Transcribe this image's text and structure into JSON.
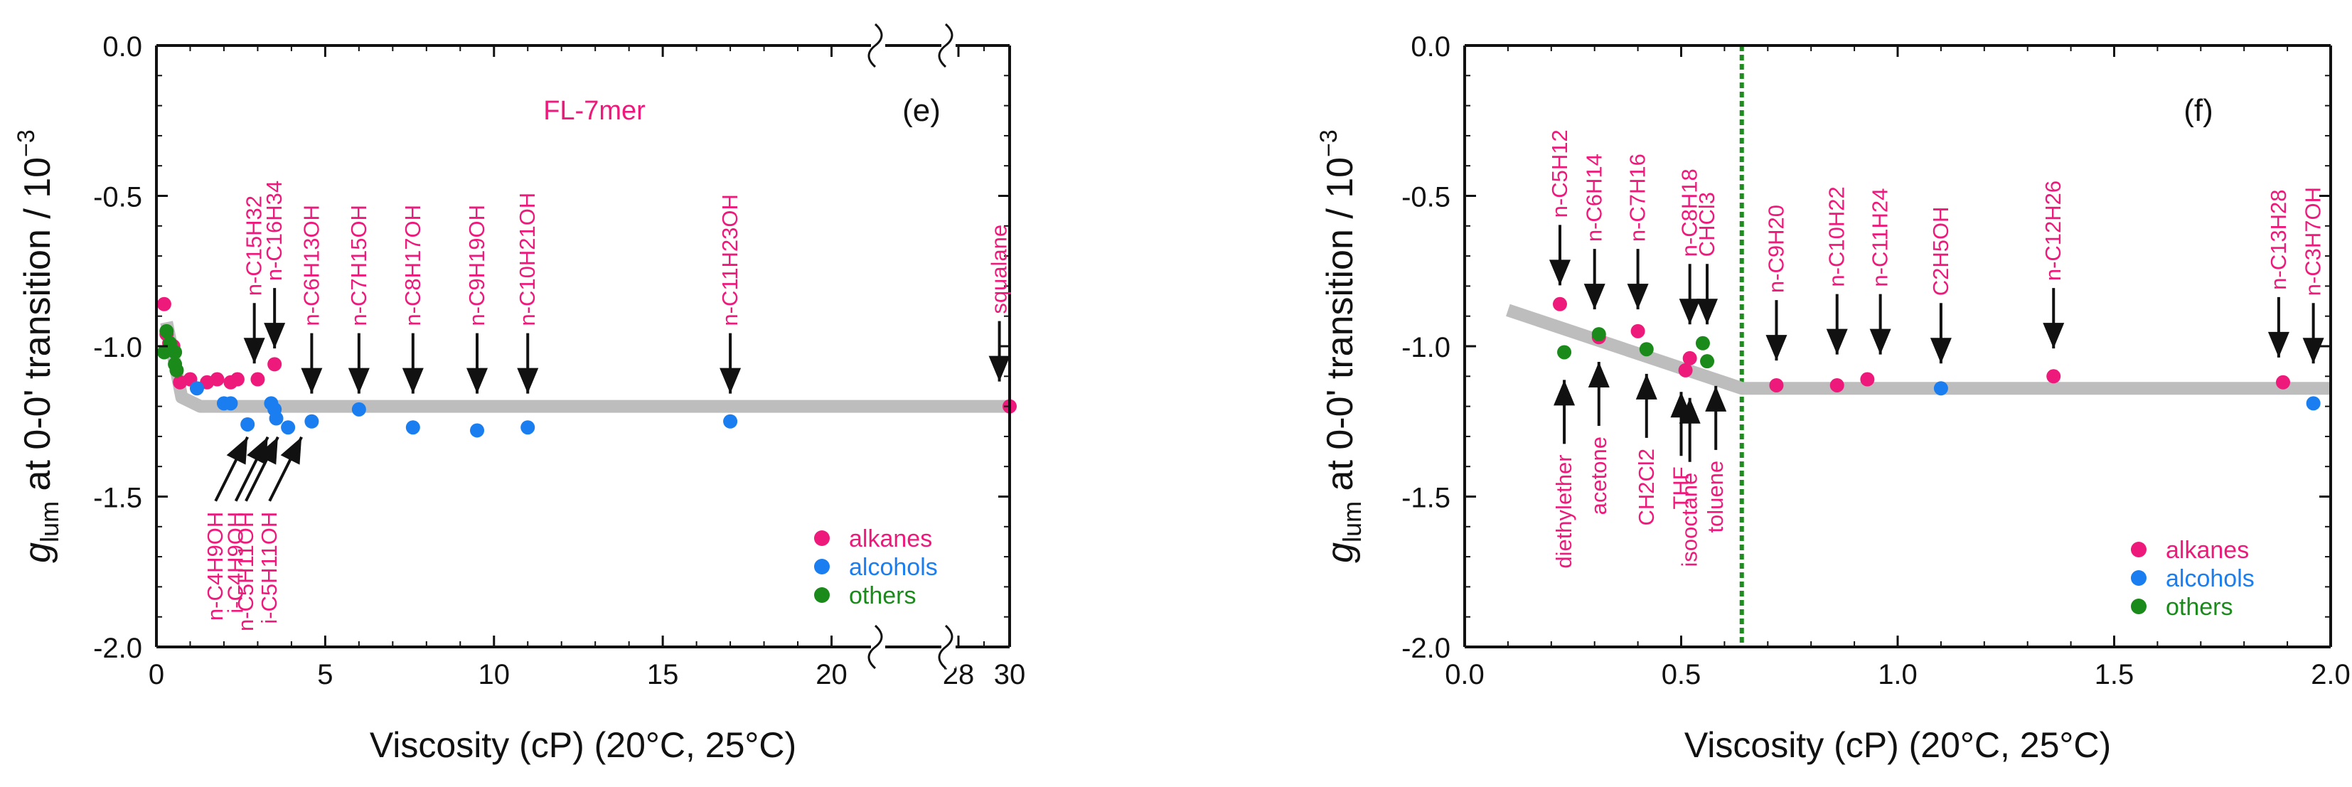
{
  "chart_data": [
    {
      "panel": "(e)",
      "type": "scatter",
      "subtitle": "FL-7mer",
      "xlabel": "Viscosity (cP) (20°C, 25°C)",
      "ylabel_main": "g",
      "ylabel_sub": "lum",
      "ylabel_rest": " at 0-0' transition / 10",
      "ylabel_exp": "−3",
      "xlim": [
        0,
        30
      ],
      "axis_break": {
        "from": 21,
        "to": 28
      },
      "xticks": [
        "0",
        "5",
        "10",
        "15",
        "20",
        "28",
        "30"
      ],
      "ylim": [
        -2.0,
        0.0
      ],
      "yticks": [
        "0.0",
        "-0.5",
        "-1.0",
        "-1.5",
        "-2.0"
      ],
      "trend": [
        [
          0.3,
          -0.92
        ],
        [
          0.75,
          -1.17
        ],
        [
          1.3,
          -1.2
        ],
        [
          30,
          -1.2
        ]
      ],
      "series": [
        {
          "name": "alkanes",
          "color": "#ee1a7b",
          "points": [
            [
              0.23,
              -0.86
            ],
            [
              0.3,
              -0.96
            ],
            [
              0.38,
              -0.99
            ],
            [
              0.5,
              -1.0
            ],
            [
              0.7,
              -1.12
            ],
            [
              1.0,
              -1.11
            ],
            [
              1.5,
              -1.12
            ],
            [
              1.8,
              -1.11
            ],
            [
              2.2,
              -1.12
            ],
            [
              2.4,
              -1.11
            ],
            [
              3.0,
              -1.11
            ],
            [
              3.5,
              -1.06
            ],
            [
              30,
              -1.2
            ]
          ]
        },
        {
          "name": "alcohols",
          "color": "#1a7ef0",
          "points": [
            [
              1.2,
              -1.14
            ],
            [
              2.0,
              -1.19
            ],
            [
              2.2,
              -1.19
            ],
            [
              2.7,
              -1.26
            ],
            [
              3.4,
              -1.19
            ],
            [
              3.5,
              -1.21
            ],
            [
              3.55,
              -1.24
            ],
            [
              3.9,
              -1.27
            ],
            [
              4.6,
              -1.25
            ],
            [
              6.0,
              -1.21
            ],
            [
              7.6,
              -1.27
            ],
            [
              9.5,
              -1.28
            ],
            [
              11.0,
              -1.27
            ],
            [
              17.0,
              -1.25
            ]
          ]
        },
        {
          "name": "others",
          "color": "#1a8a1a",
          "points": [
            [
              0.23,
              -1.02
            ],
            [
              0.3,
              -0.95
            ],
            [
              0.4,
              -0.99
            ],
            [
              0.55,
              -1.02
            ],
            [
              0.55,
              -1.06
            ],
            [
              0.6,
              -1.08
            ]
          ]
        }
      ],
      "labels_top": [
        {
          "text": "n-C15H32",
          "x": 2.9,
          "y": -1.1
        },
        {
          "text": "n-C16H34",
          "x": 3.5,
          "y": -1.05
        },
        {
          "text": "n-C6H13OH",
          "x": 4.6,
          "y": -1.2
        },
        {
          "text": "n-C7H15OH",
          "x": 6.0,
          "y": -1.2
        },
        {
          "text": "n-C8H17OH",
          "x": 7.6,
          "y": -1.2
        },
        {
          "text": "n-C9H19OH",
          "x": 9.5,
          "y": -1.2
        },
        {
          "text": "n-C10H21OH",
          "x": 11.0,
          "y": -1.2
        },
        {
          "text": "n-C11H23OH",
          "x": 17.0,
          "y": -1.2
        },
        {
          "text": "squalane",
          "x": 29.6,
          "y": -1.16
        }
      ],
      "labels_bottom": [
        {
          "text": "n-C4H9OH",
          "x": 2.7,
          "y": -1.25
        },
        {
          "text": "i-C4H9OH",
          "x": 3.3,
          "y": -1.25
        },
        {
          "text": "n-C5H11OH",
          "x": 3.6,
          "y": -1.25
        },
        {
          "text": "i-C5H11OH",
          "x": 4.3,
          "y": -1.25
        }
      ],
      "legend": [
        "alkanes",
        "alcohols",
        "others"
      ]
    },
    {
      "panel": "(f)",
      "type": "scatter",
      "xlabel": "Viscosity (cP) (20°C, 25°C)",
      "ylabel_main": "g",
      "ylabel_sub": "lum",
      "ylabel_rest": " at 0-0' transition / 10",
      "ylabel_exp": "−3",
      "xlim": [
        0.0,
        2.0
      ],
      "xticks": [
        "0.0",
        "0.5",
        "1.0",
        "1.5",
        "2.0"
      ],
      "ylim": [
        -2.0,
        0.0
      ],
      "yticks": [
        "0.0",
        "-0.5",
        "-1.0",
        "-1.5",
        "-2.0"
      ],
      "vline": 0.64,
      "trend": [
        [
          0.1,
          -0.88
        ],
        [
          0.64,
          -1.14
        ],
        [
          2.0,
          -1.14
        ]
      ],
      "series": [
        {
          "name": "alkanes",
          "color": "#ee1a7b",
          "points": [
            [
              0.22,
              -0.86
            ],
            [
              0.31,
              -0.97
            ],
            [
              0.4,
              -0.95
            ],
            [
              0.51,
              -1.08
            ],
            [
              0.52,
              -1.04
            ],
            [
              0.72,
              -1.13
            ],
            [
              0.86,
              -1.13
            ],
            [
              0.93,
              -1.11
            ],
            [
              1.36,
              -1.1
            ],
            [
              1.89,
              -1.12
            ]
          ]
        },
        {
          "name": "alcohols",
          "color": "#1a7ef0",
          "points": [
            [
              1.1,
              -1.14
            ],
            [
              1.96,
              -1.19
            ]
          ]
        },
        {
          "name": "others",
          "color": "#1a8a1a",
          "points": [
            [
              0.23,
              -1.02
            ],
            [
              0.31,
              -0.96
            ],
            [
              0.42,
              -1.01
            ],
            [
              0.55,
              -0.99
            ],
            [
              0.56,
              -1.05
            ]
          ]
        }
      ],
      "labels_top": [
        {
          "text": "n-C5H12",
          "x": 0.22,
          "y": -0.84
        },
        {
          "text": "n-C6H14",
          "x": 0.3,
          "y": -0.92
        },
        {
          "text": "n-C7H16",
          "x": 0.4,
          "y": -0.92
        },
        {
          "text": "n-C8H18",
          "x": 0.52,
          "y": -0.97
        },
        {
          "text": "CHCl3",
          "x": 0.56,
          "y": -0.97
        },
        {
          "text": "n-C9H20",
          "x": 0.72,
          "y": -1.09
        },
        {
          "text": "n-C10H22",
          "x": 0.86,
          "y": -1.07
        },
        {
          "text": "n-C11H24",
          "x": 0.96,
          "y": -1.07
        },
        {
          "text": "C2H5OH",
          "x": 1.1,
          "y": -1.1
        },
        {
          "text": "n-C12H26",
          "x": 1.36,
          "y": -1.05
        },
        {
          "text": "n-C13H28",
          "x": 1.88,
          "y": -1.08
        },
        {
          "text": "n-C3H7OH",
          "x": 1.96,
          "y": -1.1
        }
      ],
      "labels_bottom": [
        {
          "text": "diethylether",
          "x": 0.23,
          "y": -1.06
        },
        {
          "text": "acetone",
          "x": 0.31,
          "y": -1.0
        },
        {
          "text": "CH2Cl2",
          "x": 0.42,
          "y": -1.04
        },
        {
          "text": "THF",
          "x": 0.5,
          "y": -1.1
        },
        {
          "text": "isooctane",
          "x": 0.52,
          "y": -1.12
        },
        {
          "text": "toluene",
          "x": 0.58,
          "y": -1.08
        }
      ],
      "legend": [
        "alkanes",
        "alcohols",
        "others"
      ]
    }
  ],
  "colors": {
    "trend": "#bdbdbd",
    "vline": "#1e8c1e",
    "subtitle": "#ee1a7b",
    "label": "#ee1a7b",
    "axis": "#111111"
  }
}
